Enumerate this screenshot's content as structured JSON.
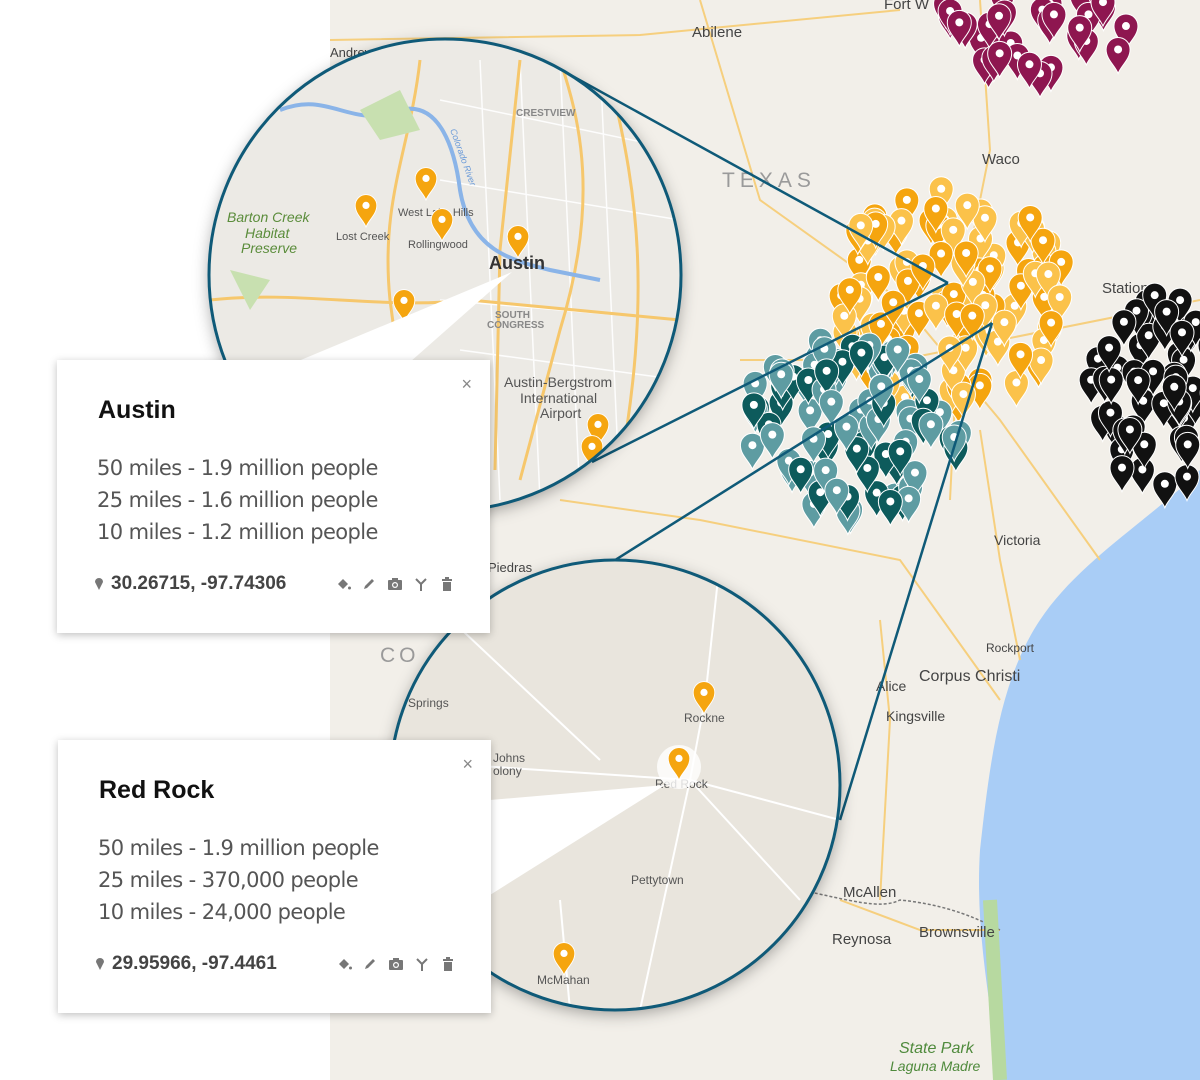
{
  "map": {
    "labels": {
      "abilene": "Abilene",
      "fortworth": "Fort W",
      "andrews": "Andrews",
      "texas": "TEXAS",
      "waco": "Waco",
      "station": "Station",
      "victoria": "Victoria",
      "rockport": "Rockport",
      "corpus": "Corpus Christi",
      "alice": "Alice",
      "kingsville": "Kingsville",
      "mcallen": "McAllen",
      "reynosa": "Reynosa",
      "brownsville": "Brownsville",
      "statepark": "State Park",
      "laguna": "Laguna Madre",
      "piedras": "Piedras",
      "co": "CO"
    },
    "austin_zoom_labels": {
      "crestview": "CRESTVIEW",
      "westlake": "West Lake Hills",
      "lostcreek": "Lost Creek",
      "rollingwood": "Rollingwood",
      "austin": "Austin",
      "barton1": "Barton Creek",
      "barton2": "Habitat",
      "barton3": "Preserve",
      "southcongress1": "SOUTH",
      "southcongress2": "CONGRESS",
      "airport1": "Austin-Bergstrom",
      "airport2": "International",
      "airport3": "Airport",
      "colorado": "Colorado River"
    },
    "redrock_zoom_labels": {
      "rockne": "Rockne",
      "redrock": "Red Rock",
      "springs": "n Springs",
      "johns": "Johns",
      "colony": "olony",
      "pettytown": "Pettytown",
      "mcmahan": "McMahan"
    },
    "colors": {
      "maroon": "#8e1650",
      "orange": "#f5a50f",
      "light_orange": "#fbc24a",
      "teal": "#5e9ca2",
      "dark_teal": "#0d5b5c",
      "black": "#111111",
      "ring": "#0f5a78",
      "water": "#a9cdf6"
    }
  },
  "cards": [
    {
      "title": "Austin",
      "lines": [
        "50 miles - 1.9 million people",
        "25 miles - 1.6 million people",
        "10 miles - 1.2 million people"
      ],
      "coords": "30.26715, -97.74306",
      "close": "×"
    },
    {
      "title": "Red Rock",
      "lines": [
        "50 miles - 1.9 million people",
        "25 miles - 370,000 people",
        "10 miles - 24,000 people"
      ],
      "coords": "29.95966, -97.4461",
      "close": "×"
    }
  ]
}
